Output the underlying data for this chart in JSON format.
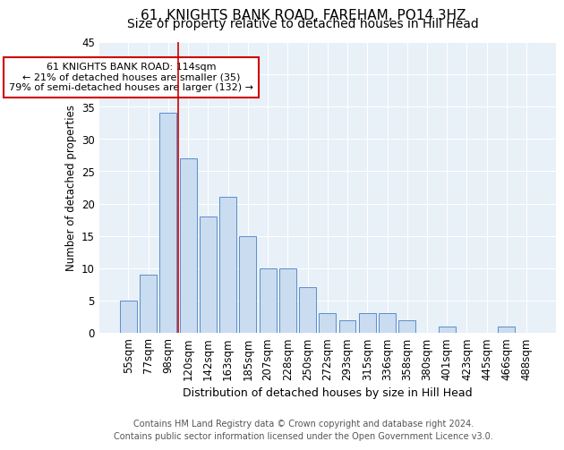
{
  "title1": "61, KNIGHTS BANK ROAD, FAREHAM, PO14 3HZ",
  "title2": "Size of property relative to detached houses in Hill Head",
  "xlabel": "Distribution of detached houses by size in Hill Head",
  "ylabel": "Number of detached properties",
  "bar_labels": [
    "55sqm",
    "77sqm",
    "98sqm",
    "120sqm",
    "142sqm",
    "163sqm",
    "185sqm",
    "207sqm",
    "228sqm",
    "250sqm",
    "272sqm",
    "293sqm",
    "315sqm",
    "336sqm",
    "358sqm",
    "380sqm",
    "401sqm",
    "423sqm",
    "445sqm",
    "466sqm",
    "488sqm"
  ],
  "bar_values": [
    5,
    9,
    34,
    27,
    18,
    21,
    15,
    10,
    10,
    7,
    3,
    2,
    3,
    3,
    2,
    0,
    1,
    0,
    0,
    1,
    0
  ],
  "bar_color": "#c9dcf0",
  "bar_edge_color": "#5b8fc9",
  "vline_pos": 2.5,
  "vline_color": "#cc0000",
  "annotation_text": "61 KNIGHTS BANK ROAD: 114sqm\n← 21% of detached houses are smaller (35)\n79% of semi-detached houses are larger (132) →",
  "annotation_box_color": "white",
  "annotation_box_edge": "#cc0000",
  "ylim": [
    0,
    45
  ],
  "yticks": [
    0,
    5,
    10,
    15,
    20,
    25,
    30,
    35,
    40,
    45
  ],
  "footer1": "Contains HM Land Registry data © Crown copyright and database right 2024.",
  "footer2": "Contains public sector information licensed under the Open Government Licence v3.0.",
  "fig_bg_color": "#ffffff",
  "plot_bg_color": "#e8f0f8",
  "grid_color": "#ffffff",
  "title1_fontsize": 11,
  "title2_fontsize": 10,
  "xlabel_fontsize": 9,
  "ylabel_fontsize": 8.5,
  "tick_fontsize": 8.5,
  "footer_fontsize": 7
}
